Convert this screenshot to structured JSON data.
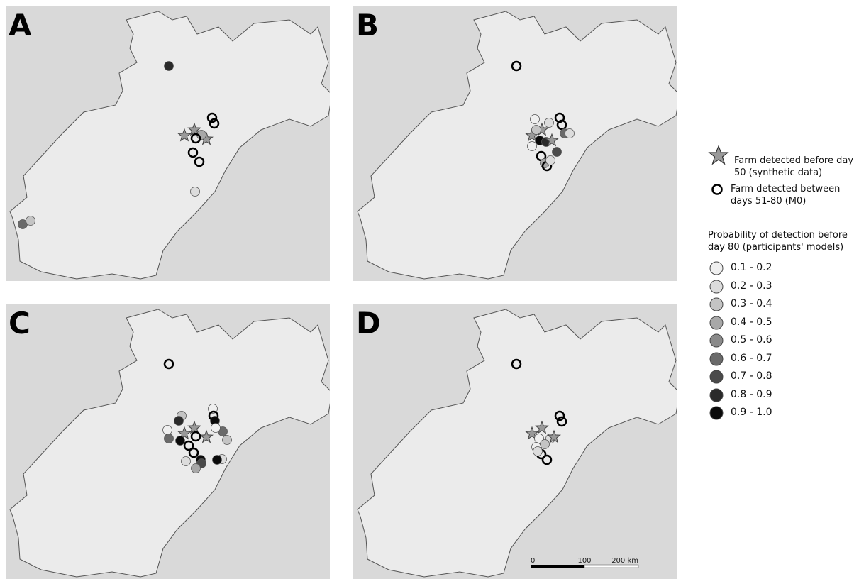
{
  "panels": [
    {
      "label": "A"
    },
    {
      "label": "B"
    },
    {
      "label": "C"
    },
    {
      "label": "D"
    }
  ],
  "legend": {
    "star": "Farm detected before day 50 (synthetic data)",
    "ring": "Farm detected between days 51-80 (M0)",
    "title": "Probability of detection before day 80 (participants' models)",
    "classes": [
      "0.1 - 0.2",
      "0.2 - 0.3",
      "0.3 - 0.4",
      "0.4 - 0.5",
      "0.5 - 0.6",
      "0.6 - 0.7",
      "0.7 - 0.8",
      "0.8 - 0.9",
      "0.9 - 1.0"
    ]
  },
  "scale": {
    "labels": [
      "0",
      "100",
      "200 km"
    ]
  }
}
